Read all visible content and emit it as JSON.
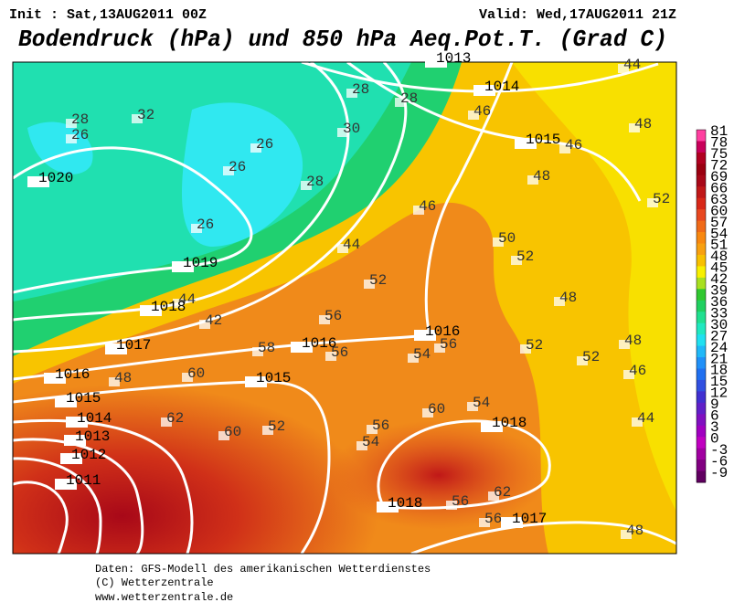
{
  "header": {
    "init": "Init : Sat,13AUG2011 00Z",
    "valid": "Valid: Wed,17AUG2011 21Z",
    "title": "Bodendruck (hPa) und 850 hPa Aeq.Pot.T. (Grad C)"
  },
  "map": {
    "isobar_labels": [
      1013,
      1014,
      1015,
      1020,
      1019,
      1018,
      1017,
      1016,
      1016,
      1016,
      1015,
      1015,
      1014,
      1013,
      1012,
      1011,
      1018,
      1018,
      1017
    ],
    "theta_labels": [
      28,
      26,
      32,
      26,
      26,
      28,
      26,
      30,
      28,
      28,
      44,
      46,
      46,
      48,
      48,
      52,
      46,
      50,
      52,
      48,
      44,
      52,
      42,
      44,
      56,
      58,
      48,
      60,
      56,
      54,
      56,
      52,
      52,
      48,
      46,
      62,
      60,
      52,
      54,
      56,
      60,
      54,
      62,
      56,
      56,
      48,
      44
    ]
  },
  "colorbar": {
    "levels": [
      81,
      78,
      75,
      72,
      69,
      66,
      63,
      60,
      57,
      54,
      51,
      48,
      45,
      42,
      39,
      36,
      33,
      30,
      27,
      24,
      21,
      18,
      15,
      12,
      9,
      6,
      3,
      0,
      -3,
      -6,
      -9
    ],
    "colors": [
      "#ff3fa0",
      "#c8005a",
      "#b00020",
      "#9a0010",
      "#a80818",
      "#c01818",
      "#d82818",
      "#e84820",
      "#f06a18",
      "#f88810",
      "#f8a010",
      "#f8c000",
      "#f8f000",
      "#a8e020",
      "#30c830",
      "#20d060",
      "#20e090",
      "#20e8c0",
      "#20e0f0",
      "#20b8f8",
      "#2090f8",
      "#2070f0",
      "#3050e0",
      "#4030d0",
      "#6020c8",
      "#8010c0",
      "#a000c0",
      "#c000c0",
      "#a000a0",
      "#800080",
      "#600060"
    ]
  },
  "footer": [
    "Daten: GFS-Modell des amerikanischen Wetterdienstes",
    "(C) Wetterzentrale",
    "www.wetterzentrale.de"
  ]
}
